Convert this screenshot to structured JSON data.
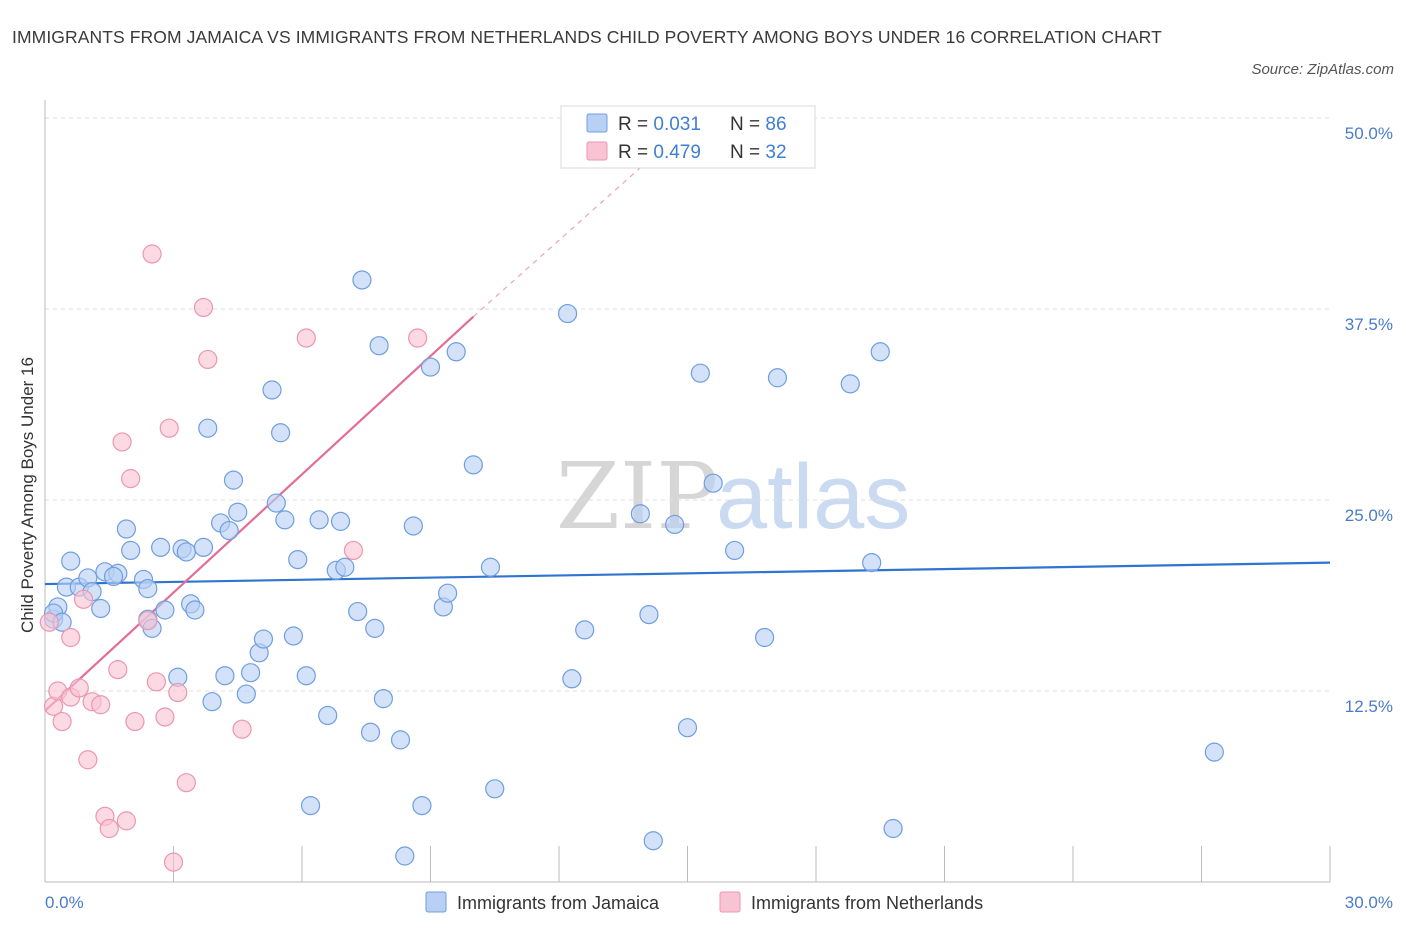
{
  "header": {
    "title": "IMMIGRANTS FROM JAMAICA VS IMMIGRANTS FROM NETHERLANDS CHILD POVERTY AMONG BOYS UNDER 16 CORRELATION CHART",
    "source": "Source: ZipAtlas.com"
  },
  "watermark": {
    "part1": "ZIP",
    "part2": "atlas"
  },
  "colors": {
    "jamaica_fill": "#b8d0f3",
    "jamaica_stroke": "#6f9ee0",
    "jamaica_line": "#2f74cf",
    "netherlands_fill": "#f8c4d4",
    "netherlands_stroke": "#ec96b1",
    "netherlands_line": "#e46d98",
    "tick_text": "#4a7cc9",
    "grid": "#dddddd"
  },
  "legend": {
    "rows": [
      {
        "r_label": "R = ",
        "r_value": "0.031",
        "n_label": "N = ",
        "n_value": "86"
      },
      {
        "r_label": "R = ",
        "r_value": "0.479",
        "n_label": "N = ",
        "n_value": "32"
      }
    ]
  },
  "chart_data": {
    "type": "scatter",
    "title": "IMMIGRANTS FROM JAMAICA VS IMMIGRANTS FROM NETHERLANDS CHILD POVERTY AMONG BOYS UNDER 16 CORRELATION CHART",
    "xlabel": "",
    "ylabel": "Child Poverty Among Boys Under 16",
    "xlim": [
      0,
      30
    ],
    "ylim": [
      0,
      50
    ],
    "x_tick_labels": [
      "0.0%",
      "30.0%"
    ],
    "y_ticks": [
      12.5,
      25.0,
      37.5,
      50.0
    ],
    "y_tick_labels": [
      "12.5%",
      "25.0%",
      "37.5%",
      "50.0%"
    ],
    "grid": true,
    "legend_position": "bottom",
    "series": [
      {
        "name": "Immigrants from Jamaica",
        "color": "#6f9ee0",
        "trend": {
          "x": [
            0,
            30
          ],
          "y": [
            19.5,
            20.9
          ]
        },
        "points": [
          [
            0.2,
            17.2
          ],
          [
            0.3,
            18.0
          ],
          [
            0.5,
            19.3
          ],
          [
            0.6,
            21.0
          ],
          [
            0.8,
            19.3
          ],
          [
            1.0,
            19.9
          ],
          [
            1.1,
            19.0
          ],
          [
            1.3,
            17.9
          ],
          [
            1.4,
            20.3
          ],
          [
            1.7,
            20.2
          ],
          [
            1.9,
            23.1
          ],
          [
            2.0,
            21.7
          ],
          [
            2.3,
            19.8
          ],
          [
            2.4,
            17.2
          ],
          [
            2.4,
            19.2
          ],
          [
            2.5,
            16.6
          ],
          [
            2.7,
            21.9
          ],
          [
            2.8,
            17.8
          ],
          [
            3.1,
            13.4
          ],
          [
            3.2,
            21.8
          ],
          [
            3.3,
            21.6
          ],
          [
            3.4,
            18.2
          ],
          [
            3.5,
            17.8
          ],
          [
            3.7,
            21.9
          ],
          [
            3.8,
            29.7
          ],
          [
            3.9,
            11.8
          ],
          [
            4.1,
            23.5
          ],
          [
            4.2,
            13.5
          ],
          [
            4.3,
            23.0
          ],
          [
            4.4,
            26.3
          ],
          [
            4.5,
            24.2
          ],
          [
            4.7,
            12.3
          ],
          [
            4.8,
            13.7
          ],
          [
            5.0,
            15.0
          ],
          [
            5.1,
            15.9
          ],
          [
            5.3,
            32.2
          ],
          [
            5.4,
            24.8
          ],
          [
            5.5,
            29.4
          ],
          [
            5.6,
            23.7
          ],
          [
            5.8,
            16.1
          ],
          [
            5.9,
            21.1
          ],
          [
            6.1,
            13.5
          ],
          [
            6.2,
            5.0
          ],
          [
            6.4,
            23.7
          ],
          [
            6.6,
            10.9
          ],
          [
            6.8,
            20.4
          ],
          [
            6.9,
            23.6
          ],
          [
            7.0,
            20.6
          ],
          [
            7.3,
            17.7
          ],
          [
            7.4,
            39.4
          ],
          [
            7.6,
            9.8
          ],
          [
            7.7,
            16.6
          ],
          [
            7.8,
            35.1
          ],
          [
            7.9,
            12.0
          ],
          [
            8.3,
            9.3
          ],
          [
            8.4,
            1.7
          ],
          [
            8.6,
            23.3
          ],
          [
            8.8,
            5.0
          ],
          [
            9.0,
            33.7
          ],
          [
            9.3,
            18.0
          ],
          [
            9.4,
            18.9
          ],
          [
            9.6,
            34.7
          ],
          [
            10.0,
            27.3
          ],
          [
            10.4,
            20.6
          ],
          [
            10.5,
            6.1
          ],
          [
            12.2,
            37.2
          ],
          [
            12.3,
            13.3
          ],
          [
            12.6,
            16.5
          ],
          [
            13.9,
            24.1
          ],
          [
            14.1,
            17.5
          ],
          [
            14.2,
            2.7
          ],
          [
            14.7,
            23.4
          ],
          [
            15.0,
            10.1
          ],
          [
            15.3,
            33.3
          ],
          [
            15.6,
            26.1
          ],
          [
            16.1,
            21.7
          ],
          [
            16.8,
            16.0
          ],
          [
            17.1,
            33.0
          ],
          [
            18.8,
            32.6
          ],
          [
            19.3,
            20.9
          ],
          [
            19.5,
            34.7
          ],
          [
            19.8,
            3.5
          ],
          [
            27.3,
            8.5
          ],
          [
            0.2,
            17.6
          ],
          [
            0.4,
            17.0
          ],
          [
            1.6,
            20.0
          ]
        ]
      },
      {
        "name": "Immigrants from Netherlands",
        "color": "#ec96b1",
        "trend": {
          "x": [
            0,
            10
          ],
          "y": [
            11.2,
            37.0
          ]
        },
        "trend_extension": {
          "x": [
            10,
            15
          ],
          "y": [
            37.0,
            49.5
          ]
        },
        "points": [
          [
            0.1,
            17.0
          ],
          [
            0.2,
            11.5
          ],
          [
            0.3,
            12.5
          ],
          [
            0.4,
            10.5
          ],
          [
            0.6,
            16.0
          ],
          [
            0.6,
            12.1
          ],
          [
            0.8,
            12.7
          ],
          [
            0.9,
            18.5
          ],
          [
            1.0,
            8.0
          ],
          [
            1.1,
            11.8
          ],
          [
            1.3,
            11.6
          ],
          [
            1.4,
            4.3
          ],
          [
            1.5,
            3.5
          ],
          [
            1.7,
            13.9
          ],
          [
            1.8,
            28.8
          ],
          [
            1.9,
            4.0
          ],
          [
            2.0,
            26.4
          ],
          [
            2.1,
            10.5
          ],
          [
            2.4,
            17.1
          ],
          [
            2.5,
            41.1
          ],
          [
            2.6,
            13.1
          ],
          [
            2.8,
            10.8
          ],
          [
            2.9,
            29.7
          ],
          [
            3.0,
            1.3
          ],
          [
            3.1,
            12.4
          ],
          [
            3.3,
            6.5
          ],
          [
            3.7,
            37.6
          ],
          [
            3.8,
            34.2
          ],
          [
            4.6,
            10.0
          ],
          [
            6.1,
            35.6
          ],
          [
            7.2,
            21.7
          ],
          [
            8.7,
            35.6
          ]
        ]
      }
    ]
  }
}
